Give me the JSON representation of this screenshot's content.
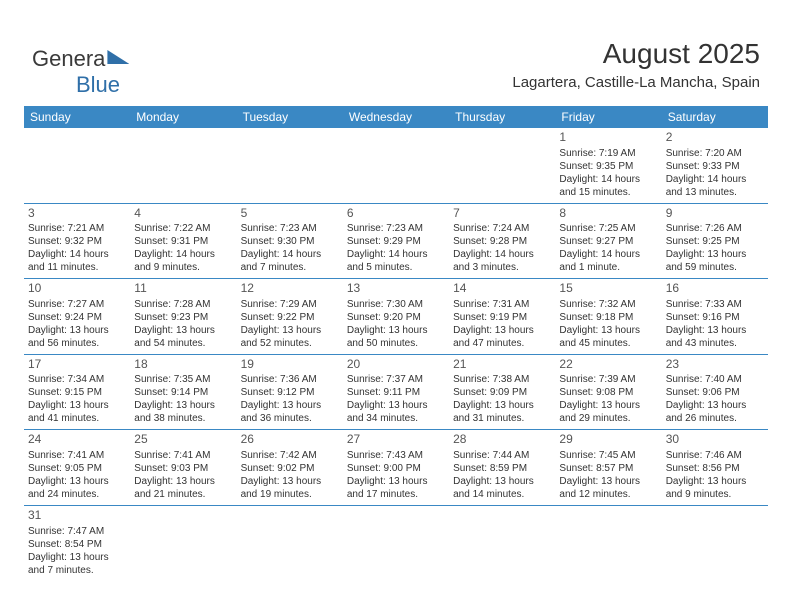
{
  "logo": {
    "part1": "Genera",
    "part2": "Blue"
  },
  "title": "August 2025",
  "location": "Lagartera, Castille-La Mancha, Spain",
  "dayNames": [
    "Sunday",
    "Monday",
    "Tuesday",
    "Wednesday",
    "Thursday",
    "Friday",
    "Saturday"
  ],
  "colors": {
    "headerBg": "#3a88c4",
    "headerText": "#ffffff",
    "borderColor": "#3a88c4",
    "textColor": "#333333",
    "logoBlue": "#2f6fa8"
  },
  "fonts": {
    "title_pt": 28,
    "location_pt": 15,
    "dayheader_pt": 12,
    "daynum_pt": 12,
    "cell_pt": 10
  },
  "weeks": [
    [
      null,
      null,
      null,
      null,
      null,
      {
        "n": "1",
        "sr": "Sunrise: 7:19 AM",
        "ss": "Sunset: 9:35 PM",
        "dl1": "Daylight: 14 hours",
        "dl2": "and 15 minutes."
      },
      {
        "n": "2",
        "sr": "Sunrise: 7:20 AM",
        "ss": "Sunset: 9:33 PM",
        "dl1": "Daylight: 14 hours",
        "dl2": "and 13 minutes."
      }
    ],
    [
      {
        "n": "3",
        "sr": "Sunrise: 7:21 AM",
        "ss": "Sunset: 9:32 PM",
        "dl1": "Daylight: 14 hours",
        "dl2": "and 11 minutes."
      },
      {
        "n": "4",
        "sr": "Sunrise: 7:22 AM",
        "ss": "Sunset: 9:31 PM",
        "dl1": "Daylight: 14 hours",
        "dl2": "and 9 minutes."
      },
      {
        "n": "5",
        "sr": "Sunrise: 7:23 AM",
        "ss": "Sunset: 9:30 PM",
        "dl1": "Daylight: 14 hours",
        "dl2": "and 7 minutes."
      },
      {
        "n": "6",
        "sr": "Sunrise: 7:23 AM",
        "ss": "Sunset: 9:29 PM",
        "dl1": "Daylight: 14 hours",
        "dl2": "and 5 minutes."
      },
      {
        "n": "7",
        "sr": "Sunrise: 7:24 AM",
        "ss": "Sunset: 9:28 PM",
        "dl1": "Daylight: 14 hours",
        "dl2": "and 3 minutes."
      },
      {
        "n": "8",
        "sr": "Sunrise: 7:25 AM",
        "ss": "Sunset: 9:27 PM",
        "dl1": "Daylight: 14 hours",
        "dl2": "and 1 minute."
      },
      {
        "n": "9",
        "sr": "Sunrise: 7:26 AM",
        "ss": "Sunset: 9:25 PM",
        "dl1": "Daylight: 13 hours",
        "dl2": "and 59 minutes."
      }
    ],
    [
      {
        "n": "10",
        "sr": "Sunrise: 7:27 AM",
        "ss": "Sunset: 9:24 PM",
        "dl1": "Daylight: 13 hours",
        "dl2": "and 56 minutes."
      },
      {
        "n": "11",
        "sr": "Sunrise: 7:28 AM",
        "ss": "Sunset: 9:23 PM",
        "dl1": "Daylight: 13 hours",
        "dl2": "and 54 minutes."
      },
      {
        "n": "12",
        "sr": "Sunrise: 7:29 AM",
        "ss": "Sunset: 9:22 PM",
        "dl1": "Daylight: 13 hours",
        "dl2": "and 52 minutes."
      },
      {
        "n": "13",
        "sr": "Sunrise: 7:30 AM",
        "ss": "Sunset: 9:20 PM",
        "dl1": "Daylight: 13 hours",
        "dl2": "and 50 minutes."
      },
      {
        "n": "14",
        "sr": "Sunrise: 7:31 AM",
        "ss": "Sunset: 9:19 PM",
        "dl1": "Daylight: 13 hours",
        "dl2": "and 47 minutes."
      },
      {
        "n": "15",
        "sr": "Sunrise: 7:32 AM",
        "ss": "Sunset: 9:18 PM",
        "dl1": "Daylight: 13 hours",
        "dl2": "and 45 minutes."
      },
      {
        "n": "16",
        "sr": "Sunrise: 7:33 AM",
        "ss": "Sunset: 9:16 PM",
        "dl1": "Daylight: 13 hours",
        "dl2": "and 43 minutes."
      }
    ],
    [
      {
        "n": "17",
        "sr": "Sunrise: 7:34 AM",
        "ss": "Sunset: 9:15 PM",
        "dl1": "Daylight: 13 hours",
        "dl2": "and 41 minutes."
      },
      {
        "n": "18",
        "sr": "Sunrise: 7:35 AM",
        "ss": "Sunset: 9:14 PM",
        "dl1": "Daylight: 13 hours",
        "dl2": "and 38 minutes."
      },
      {
        "n": "19",
        "sr": "Sunrise: 7:36 AM",
        "ss": "Sunset: 9:12 PM",
        "dl1": "Daylight: 13 hours",
        "dl2": "and 36 minutes."
      },
      {
        "n": "20",
        "sr": "Sunrise: 7:37 AM",
        "ss": "Sunset: 9:11 PM",
        "dl1": "Daylight: 13 hours",
        "dl2": "and 34 minutes."
      },
      {
        "n": "21",
        "sr": "Sunrise: 7:38 AM",
        "ss": "Sunset: 9:09 PM",
        "dl1": "Daylight: 13 hours",
        "dl2": "and 31 minutes."
      },
      {
        "n": "22",
        "sr": "Sunrise: 7:39 AM",
        "ss": "Sunset: 9:08 PM",
        "dl1": "Daylight: 13 hours",
        "dl2": "and 29 minutes."
      },
      {
        "n": "23",
        "sr": "Sunrise: 7:40 AM",
        "ss": "Sunset: 9:06 PM",
        "dl1": "Daylight: 13 hours",
        "dl2": "and 26 minutes."
      }
    ],
    [
      {
        "n": "24",
        "sr": "Sunrise: 7:41 AM",
        "ss": "Sunset: 9:05 PM",
        "dl1": "Daylight: 13 hours",
        "dl2": "and 24 minutes."
      },
      {
        "n": "25",
        "sr": "Sunrise: 7:41 AM",
        "ss": "Sunset: 9:03 PM",
        "dl1": "Daylight: 13 hours",
        "dl2": "and 21 minutes."
      },
      {
        "n": "26",
        "sr": "Sunrise: 7:42 AM",
        "ss": "Sunset: 9:02 PM",
        "dl1": "Daylight: 13 hours",
        "dl2": "and 19 minutes."
      },
      {
        "n": "27",
        "sr": "Sunrise: 7:43 AM",
        "ss": "Sunset: 9:00 PM",
        "dl1": "Daylight: 13 hours",
        "dl2": "and 17 minutes."
      },
      {
        "n": "28",
        "sr": "Sunrise: 7:44 AM",
        "ss": "Sunset: 8:59 PM",
        "dl1": "Daylight: 13 hours",
        "dl2": "and 14 minutes."
      },
      {
        "n": "29",
        "sr": "Sunrise: 7:45 AM",
        "ss": "Sunset: 8:57 PM",
        "dl1": "Daylight: 13 hours",
        "dl2": "and 12 minutes."
      },
      {
        "n": "30",
        "sr": "Sunrise: 7:46 AM",
        "ss": "Sunset: 8:56 PM",
        "dl1": "Daylight: 13 hours",
        "dl2": "and 9 minutes."
      }
    ],
    [
      {
        "n": "31",
        "sr": "Sunrise: 7:47 AM",
        "ss": "Sunset: 8:54 PM",
        "dl1": "Daylight: 13 hours",
        "dl2": "and 7 minutes."
      },
      null,
      null,
      null,
      null,
      null,
      null
    ]
  ]
}
